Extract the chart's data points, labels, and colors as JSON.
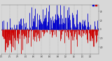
{
  "background_color": "#d8d8d8",
  "plot_bg_color": "#d8d8d8",
  "num_points": 365,
  "blue_color": "#0000cc",
  "red_color": "#cc0000",
  "grid_color": "#aaaaaa",
  "y_min": -55,
  "y_max": 55,
  "y_ticks": [
    -40,
    -20,
    0,
    20,
    40
  ],
  "month_positions": [
    0,
    31,
    59,
    90,
    120,
    151,
    181,
    212,
    243,
    273,
    304,
    334
  ],
  "month_labels": [
    "7/1",
    "7/5",
    "7/9",
    "8/2",
    "8/6",
    "9/0",
    "9/4",
    "9/8",
    "0/2",
    "0/6",
    "1/0",
    "1/4"
  ],
  "seed": 42
}
